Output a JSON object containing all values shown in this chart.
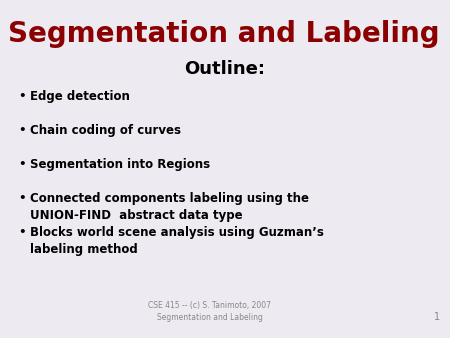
{
  "bg_color": "#edeaf2",
  "title": "Segmentation and Labeling",
  "title_color": "#8b0000",
  "subtitle": "Outline:",
  "subtitle_color": "#000000",
  "bullet_items": [
    "Edge detection",
    "Chain coding of curves",
    "Segmentation into Regions",
    "Connected components labeling using the\nUNION-FIND  abstract data type",
    "Blocks world scene analysis using Guzman’s\nlabeling method"
  ],
  "bullet_color": "#000000",
  "footer_line1": "CSE 415 -- (c) S. Tanimoto, 2007",
  "footer_line2": "Segmentation and Labeling",
  "footer_color": "#888888",
  "page_number": "1",
  "title_fontsize": 20,
  "subtitle_fontsize": 13,
  "bullet_fontsize": 8.5,
  "footer_fontsize": 5.5
}
